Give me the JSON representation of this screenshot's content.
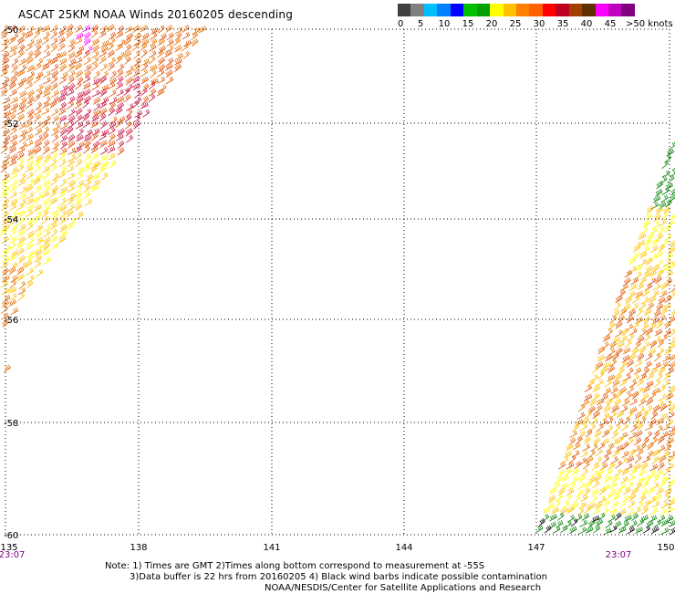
{
  "header": {
    "title": "ASCAT 25KM NOAA Winds 20160205 descending"
  },
  "legend": {
    "colors": [
      "#404040",
      "#808080",
      "#00bfff",
      "#0080ff",
      "#0000ff",
      "#00c000",
      "#00a000",
      "#ffff00",
      "#ffc000",
      "#ff8000",
      "#ff6000",
      "#ff0000",
      "#c00020",
      "#a04000",
      "#603000",
      "#ff00ff",
      "#c000c0",
      "#800080"
    ],
    "ticks": [
      "0",
      "5",
      "10",
      "15",
      "20",
      "25",
      "30",
      "35",
      "40",
      "45",
      ">50 knots"
    ]
  },
  "map": {
    "lon_labels": [
      "135",
      "138",
      "141",
      "144",
      "147",
      "150"
    ],
    "lat_labels": [
      "-50",
      "-52",
      "-54",
      "-56",
      "-58",
      "-60"
    ],
    "time_labels": [
      "23:07",
      "23:07"
    ],
    "barb_colors": {
      "orange": "#e87000",
      "red_orange": "#e05000",
      "crimson": "#c8103c",
      "magenta": "#ff00ff",
      "gold": "#ffc000",
      "yellow": "#ffff00",
      "green": "#008000",
      "black": "#000000"
    }
  },
  "notes": {
    "line1": "Note: 1) Times are GMT 2)Times along bottom correspond to measurement at -55S",
    "line2": "3)Data buffer is 22 hrs from 20160205 4) Black wind barbs indicate possible contamination",
    "line3": "NOAA/NESDIS/Center for Satellite Applications and Research"
  }
}
